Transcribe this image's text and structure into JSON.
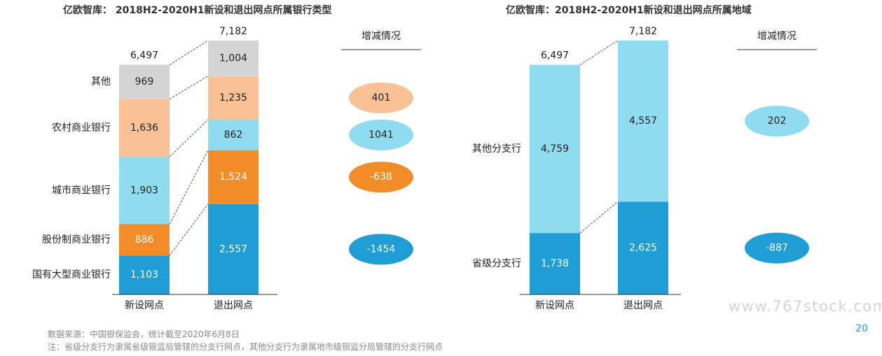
{
  "chart_data": [
    {
      "type": "bar",
      "stacked": true,
      "title": "亿欧智库： 2018H2-2020H1新设和退出网点所属银行类型",
      "categories": [
        "新设网点",
        "退出网点"
      ],
      "totals": [
        6497,
        7182
      ],
      "series": [
        {
          "name": "国有大型商业银行",
          "values": [
            1103,
            2557
          ],
          "color": "#1f9ed5",
          "change": "-1454",
          "text_color": "#ffffff"
        },
        {
          "name": "股份制商业银行",
          "values": [
            886,
            1524
          ],
          "color": "#f28c28",
          "change": "-638",
          "text_color": "#ffffff"
        },
        {
          "name": "城市商业银行",
          "values": [
            1903,
            862
          ],
          "color": "#8fdcf1",
          "change": "1041",
          "text_color": "#222222"
        },
        {
          "name": "农村商业银行",
          "values": [
            1636,
            1235
          ],
          "color": "#f8c196",
          "change": "401",
          "text_color": "#222222"
        },
        {
          "name": "其他",
          "values": [
            969,
            1004
          ],
          "color": "#d4d4d4",
          "change": null,
          "text_color": "#222222"
        }
      ],
      "value_labels": [
        [
          "1,103",
          "2,557"
        ],
        [
          "886",
          "1,524"
        ],
        [
          "1,903",
          "862"
        ],
        [
          "1,636",
          "1,235"
        ],
        [
          "969",
          "1,004"
        ]
      ],
      "total_labels": [
        "6,497",
        "7,182"
      ],
      "change_header": "增减情况",
      "ylim": [
        0,
        7182
      ]
    },
    {
      "type": "bar",
      "stacked": true,
      "title": "亿欧智库：2018H2-2020H1新设和退出网点所属地域",
      "categories": [
        "新设网点",
        "退出网点"
      ],
      "totals": [
        6497,
        7182
      ],
      "series": [
        {
          "name": "省级分支行",
          "values": [
            1738,
            2625
          ],
          "color": "#1f9ed5",
          "change": "-887",
          "text_color": "#ffffff"
        },
        {
          "name": "其他分支行",
          "values": [
            4759,
            4557
          ],
          "color": "#8fdcf1",
          "change": "202",
          "text_color": "#222222"
        }
      ],
      "value_labels": [
        [
          "1,738",
          "2,625"
        ],
        [
          "4,759",
          "4,557"
        ]
      ],
      "total_labels": [
        "6,497",
        "7,182"
      ],
      "change_header": "增减情况",
      "ylim": [
        0,
        7182
      ]
    }
  ],
  "footer": {
    "source": "数据来源：中国银保监会，统计截至2020年6月8日",
    "note": "注：省级分支行为隶属省级银监局管辖的分支行网点，其他分支行为隶属地市级银监分局管辖的分支行网点"
  },
  "page_number": "20",
  "watermark": "www.767stock.com"
}
